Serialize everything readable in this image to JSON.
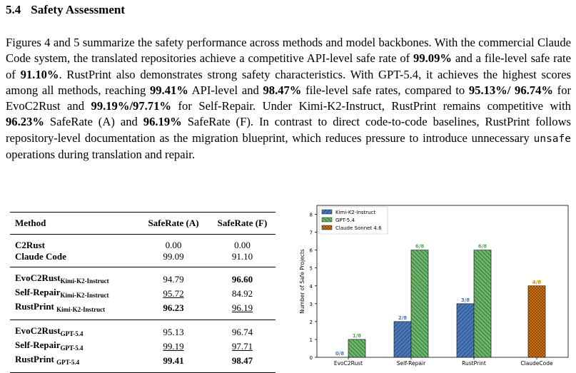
{
  "section": {
    "number": "5.4",
    "title": "Safety Assessment"
  },
  "paragraph": {
    "s1": "Figures 4 and 5 summarize the safety performance across methods and model backbones. With the commercial Claude Code system, the translated repositories achieve a competitive API-level safe rate of ",
    "b1": "99.09%",
    "s2": " and a file-level safe rate of ",
    "b2": "91.10%",
    "s3": ". RustPrint also demonstrates strong safety characteristics. With GPT-5.4, it achieves the highest scores among all methods, reaching ",
    "b3": "99.41%",
    "s4": " API-level and ",
    "b4": "98.47%",
    "s5": " file-level safe rates, compared to ",
    "b5": "95.13%/ 96.74%",
    "s6": " for EvoC2Rust and ",
    "b6": "99.19%/97.71%",
    "s7": " for Self-Repair. Under Kimi-K2-Instruct, RustPrint remains competitive with ",
    "b7": "96.23%",
    "s8": " SafeRate (A) and ",
    "b8": "96.19%",
    "s9": " SafeRate (F). In contrast to direct code-to-code baselines, RustPrint follows repository-level documentation as the migration blueprint, which reduces pressure to introduce unnecessary ",
    "code": "unsafe",
    "s10": " operations during translation and repair."
  },
  "table": {
    "headers": [
      "Method",
      "SafeRate (A)",
      "SafeRate (F)"
    ],
    "rows": [
      {
        "method": "C2Rust",
        "sub": "",
        "a": "0.00",
        "f": "0.00"
      },
      {
        "method": "Claude Code",
        "sub": "",
        "a": "99.09",
        "f": "91.10"
      },
      {
        "method": "EvoC2Rust",
        "sub": "Kimi-K2-Instruct",
        "a": "94.79",
        "f": "96.60"
      },
      {
        "method": "Self-Repair",
        "sub": "Kimi-K2-Instruct",
        "a": "95.72",
        "f": "84.92"
      },
      {
        "method": "RustPrint ",
        "sub": "Kimi-K2-Instruct",
        "a": "96.23",
        "f": "96.19"
      },
      {
        "method": "EvoC2Rust",
        "sub": "GPT-5.4",
        "a": "95.13",
        "f": "96.74"
      },
      {
        "method": "Self-Repair",
        "sub": "GPT-5.4",
        "a": "99.19",
        "f": "97.71"
      },
      {
        "method": "RustPrint ",
        "sub": "GPT-5.4",
        "a": "99.41",
        "f": "98.47"
      }
    ]
  },
  "chart_data": {
    "type": "bar",
    "ylabel": "Number of Safe Projects",
    "xlabel": "",
    "ylim": [
      0,
      8.5
    ],
    "yticks": [
      "0",
      "1",
      "2",
      "3",
      "4",
      "5",
      "6",
      "7",
      "8"
    ],
    "categories": [
      "EvoC2Rust",
      "Self-Repair",
      "RustPrint",
      "ClaudeCode"
    ],
    "legend_position": "top-left",
    "series": [
      {
        "name": "Kimi-K2-Instruct",
        "color": "#4a78b8",
        "values": [
          0,
          2,
          3,
          null
        ],
        "labels": [
          "0/8",
          "2/8",
          "3/8",
          ""
        ]
      },
      {
        "name": "GPT-5.4",
        "color": "#5aa55a",
        "values": [
          1,
          6,
          6,
          null
        ],
        "labels": [
          "1/8",
          "6/8",
          "6/8",
          ""
        ]
      },
      {
        "name": "Claude Sonnet 4.6",
        "color": "#e6860a",
        "values": [
          null,
          null,
          null,
          4
        ],
        "labels": [
          "",
          "",
          "",
          "4/8"
        ]
      }
    ]
  }
}
